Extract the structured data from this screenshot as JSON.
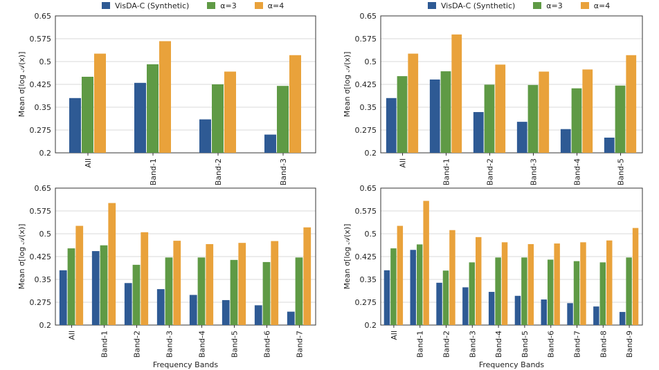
{
  "legend": {
    "items": [
      {
        "label": "VisDA-C (Synthetic)",
        "color": "#2e5a94"
      },
      {
        "label": "α=3",
        "color": "#5f9a45"
      },
      {
        "label": "α=4",
        "color": "#e9a23b"
      }
    ]
  },
  "chart_data": [
    {
      "type": "bar",
      "title": "",
      "ylabel": "Mean σ[log 𝒜(x)]",
      "xlabel": "",
      "ylim": [
        0.2,
        0.65
      ],
      "yticks": [
        "0.2",
        "0.275",
        "0.35",
        "0.425",
        "0.5",
        "0.575",
        "0.65"
      ],
      "categories": [
        "All",
        "Band-1",
        "Band-2",
        "Band-3"
      ],
      "series": [
        {
          "name": "VisDA-C (Synthetic)",
          "values": [
            0.38,
            0.43,
            0.31,
            0.26
          ]
        },
        {
          "name": "α=3",
          "values": [
            0.45,
            0.491,
            0.425,
            0.42
          ]
        },
        {
          "name": "α=4",
          "values": [
            0.526,
            0.567,
            0.467,
            0.521
          ]
        }
      ]
    },
    {
      "type": "bar",
      "title": "",
      "ylabel": "Mean σ[log 𝒜(x)]",
      "xlabel": "",
      "ylim": [
        0.2,
        0.65
      ],
      "yticks": [
        "0.2",
        "0.275",
        "0.35",
        "0.425",
        "0.5",
        "0.575",
        "0.65"
      ],
      "categories": [
        "All",
        "Band-1",
        "Band-2",
        "Band-3",
        "Band-4",
        "Band-5"
      ],
      "series": [
        {
          "name": "VisDA-C (Synthetic)",
          "values": [
            0.38,
            0.441,
            0.334,
            0.302,
            0.278,
            0.25
          ]
        },
        {
          "name": "α=3",
          "values": [
            0.452,
            0.468,
            0.424,
            0.423,
            0.412,
            0.421
          ]
        },
        {
          "name": "α=4",
          "values": [
            0.526,
            0.589,
            0.49,
            0.467,
            0.474,
            0.521
          ]
        }
      ]
    },
    {
      "type": "bar",
      "title": "",
      "ylabel": "Mean σ[log 𝒜(x)]",
      "xlabel": "Frequency Bands",
      "ylim": [
        0.2,
        0.65
      ],
      "yticks": [
        "0.2",
        "0.275",
        "0.35",
        "0.425",
        "0.5",
        "0.575",
        "0.65"
      ],
      "categories": [
        "All",
        "Band-1",
        "Band-2",
        "Band-3",
        "Band-4",
        "Band-5",
        "Band-6",
        "Band-7"
      ],
      "series": [
        {
          "name": "VisDA-C (Synthetic)",
          "values": [
            0.38,
            0.443,
            0.338,
            0.318,
            0.299,
            0.282,
            0.265,
            0.244
          ]
        },
        {
          "name": "α=3",
          "values": [
            0.452,
            0.462,
            0.398,
            0.422,
            0.422,
            0.414,
            0.407,
            0.422
          ]
        },
        {
          "name": "α=4",
          "values": [
            0.526,
            0.601,
            0.505,
            0.477,
            0.466,
            0.47,
            0.476,
            0.521
          ]
        }
      ]
    },
    {
      "type": "bar",
      "title": "",
      "ylabel": "Mean σ[log 𝒜(x)]",
      "xlabel": "Frequency Bands",
      "ylim": [
        0.2,
        0.65
      ],
      "yticks": [
        "0.2",
        "0.275",
        "0.35",
        "0.425",
        "0.5",
        "0.575",
        "0.65"
      ],
      "categories": [
        "All",
        "Band-1",
        "Band-2",
        "Band-3",
        "Band-4",
        "Band-5",
        "Band-6",
        "Band-7",
        "Band-8",
        "Band-9"
      ],
      "series": [
        {
          "name": "VisDA-C (Synthetic)",
          "values": [
            0.38,
            0.447,
            0.339,
            0.324,
            0.309,
            0.296,
            0.284,
            0.272,
            0.261,
            0.243
          ]
        },
        {
          "name": "α=3",
          "values": [
            0.452,
            0.465,
            0.379,
            0.406,
            0.422,
            0.422,
            0.415,
            0.41,
            0.406,
            0.422
          ]
        },
        {
          "name": "α=4",
          "values": [
            0.526,
            0.608,
            0.512,
            0.489,
            0.472,
            0.466,
            0.468,
            0.472,
            0.478,
            0.519
          ]
        }
      ]
    }
  ]
}
